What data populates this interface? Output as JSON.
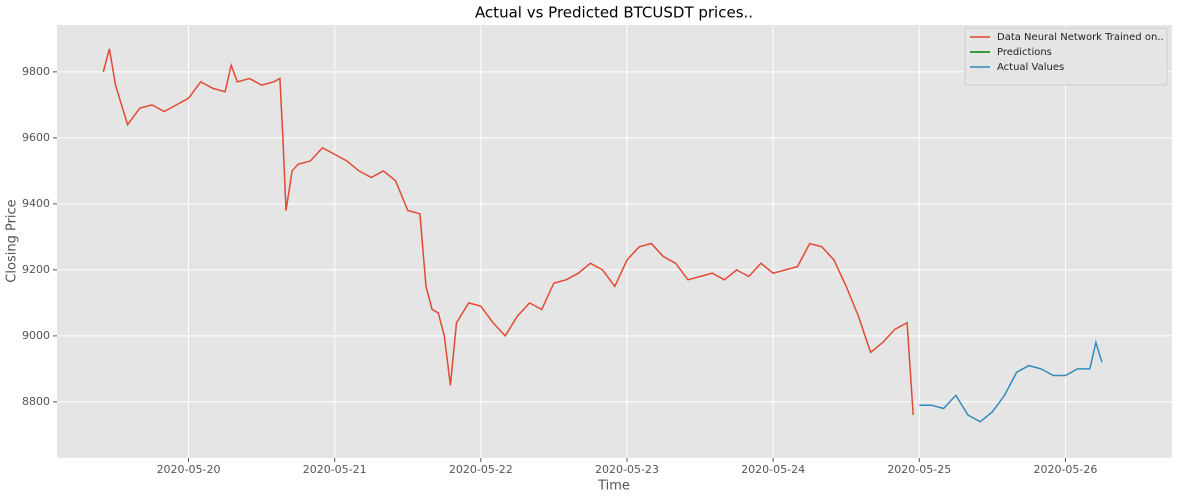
{
  "chart_data": {
    "type": "line",
    "title": "Actual vs Predicted BTCUSDT prices..",
    "x_label": "Time",
    "y_label": "Closing Price",
    "xlim": [
      "2020-05-19 02:24",
      "2020-05-26 17:30"
    ],
    "xticks": [
      "2020-05-20",
      "2020-05-21",
      "2020-05-22",
      "2020-05-23",
      "2020-05-24",
      "2020-05-25",
      "2020-05-26"
    ],
    "ylim": [
      8630,
      9942
    ],
    "yticks": [
      8800,
      9000,
      9200,
      9400,
      9600,
      9800
    ],
    "grid": true,
    "legend": "upper right",
    "series": [
      {
        "name": "Data Neural Network Trained on..",
        "color": "#E24A33",
        "x": [
          "2020-05-19 10:00",
          "2020-05-19 11:00",
          "2020-05-19 12:00",
          "2020-05-19 14:00",
          "2020-05-19 16:00",
          "2020-05-19 18:00",
          "2020-05-19 20:00",
          "2020-05-19 22:00",
          "2020-05-20 00:00",
          "2020-05-20 02:00",
          "2020-05-20 04:00",
          "2020-05-20 06:00",
          "2020-05-20 07:00",
          "2020-05-20 08:00",
          "2020-05-20 10:00",
          "2020-05-20 12:00",
          "2020-05-20 14:00",
          "2020-05-20 15:00",
          "2020-05-20 15:30",
          "2020-05-20 16:00",
          "2020-05-20 17:00",
          "2020-05-20 18:00",
          "2020-05-20 20:00",
          "2020-05-20 22:00",
          "2020-05-21 00:00",
          "2020-05-21 02:00",
          "2020-05-21 04:00",
          "2020-05-21 06:00",
          "2020-05-21 08:00",
          "2020-05-21 10:00",
          "2020-05-21 12:00",
          "2020-05-21 14:00",
          "2020-05-21 15:00",
          "2020-05-21 16:00",
          "2020-05-21 17:00",
          "2020-05-21 18:00",
          "2020-05-21 19:00",
          "2020-05-21 20:00",
          "2020-05-21 22:00",
          "2020-05-22 00:00",
          "2020-05-22 02:00",
          "2020-05-22 04:00",
          "2020-05-22 06:00",
          "2020-05-22 08:00",
          "2020-05-22 10:00",
          "2020-05-22 12:00",
          "2020-05-22 14:00",
          "2020-05-22 16:00",
          "2020-05-22 18:00",
          "2020-05-22 20:00",
          "2020-05-22 22:00",
          "2020-05-23 00:00",
          "2020-05-23 02:00",
          "2020-05-23 04:00",
          "2020-05-23 06:00",
          "2020-05-23 08:00",
          "2020-05-23 10:00",
          "2020-05-23 12:00",
          "2020-05-23 14:00",
          "2020-05-23 16:00",
          "2020-05-23 18:00",
          "2020-05-23 20:00",
          "2020-05-23 22:00",
          "2020-05-24 00:00",
          "2020-05-24 02:00",
          "2020-05-24 04:00",
          "2020-05-24 06:00",
          "2020-05-24 08:00",
          "2020-05-24 10:00",
          "2020-05-24 12:00",
          "2020-05-24 14:00",
          "2020-05-24 16:00",
          "2020-05-24 18:00",
          "2020-05-24 20:00",
          "2020-05-24 22:00",
          "2020-05-24 23:00"
        ],
        "values": [
          9800,
          9870,
          9760,
          9640,
          9690,
          9700,
          9680,
          9700,
          9720,
          9770,
          9750,
          9740,
          9820,
          9770,
          9780,
          9760,
          9770,
          9780,
          9600,
          9380,
          9500,
          9520,
          9530,
          9570,
          9550,
          9530,
          9500,
          9480,
          9500,
          9470,
          9380,
          9370,
          9150,
          9080,
          9070,
          9000,
          8850,
          9040,
          9100,
          9090,
          9040,
          9000,
          9060,
          9100,
          9080,
          9160,
          9170,
          9190,
          9220,
          9200,
          9150,
          9230,
          9270,
          9280,
          9240,
          9220,
          9170,
          9180,
          9190,
          9170,
          9200,
          9180,
          9220,
          9190,
          9200,
          9210,
          9280,
          9270,
          9230,
          9150,
          9060,
          8950,
          8980,
          9020,
          9040,
          8760
        ]
      },
      {
        "name": "Predictions",
        "color": "#008000",
        "x": [],
        "values": []
      },
      {
        "name": "Actual Values",
        "color": "#348ABD",
        "x": [
          "2020-05-25 00:00",
          "2020-05-25 02:00",
          "2020-05-25 04:00",
          "2020-05-25 06:00",
          "2020-05-25 08:00",
          "2020-05-25 10:00",
          "2020-05-25 12:00",
          "2020-05-25 14:00",
          "2020-05-25 16:00",
          "2020-05-25 18:00",
          "2020-05-25 20:00",
          "2020-05-25 22:00",
          "2020-05-26 00:00",
          "2020-05-26 02:00",
          "2020-05-26 04:00",
          "2020-05-26 05:00",
          "2020-05-26 06:00"
        ],
        "values": [
          8790,
          8790,
          8780,
          8820,
          8760,
          8740,
          8770,
          8820,
          8890,
          8910,
          8900,
          8880,
          8880,
          8900,
          8900,
          8980,
          8920
        ]
      }
    ]
  }
}
